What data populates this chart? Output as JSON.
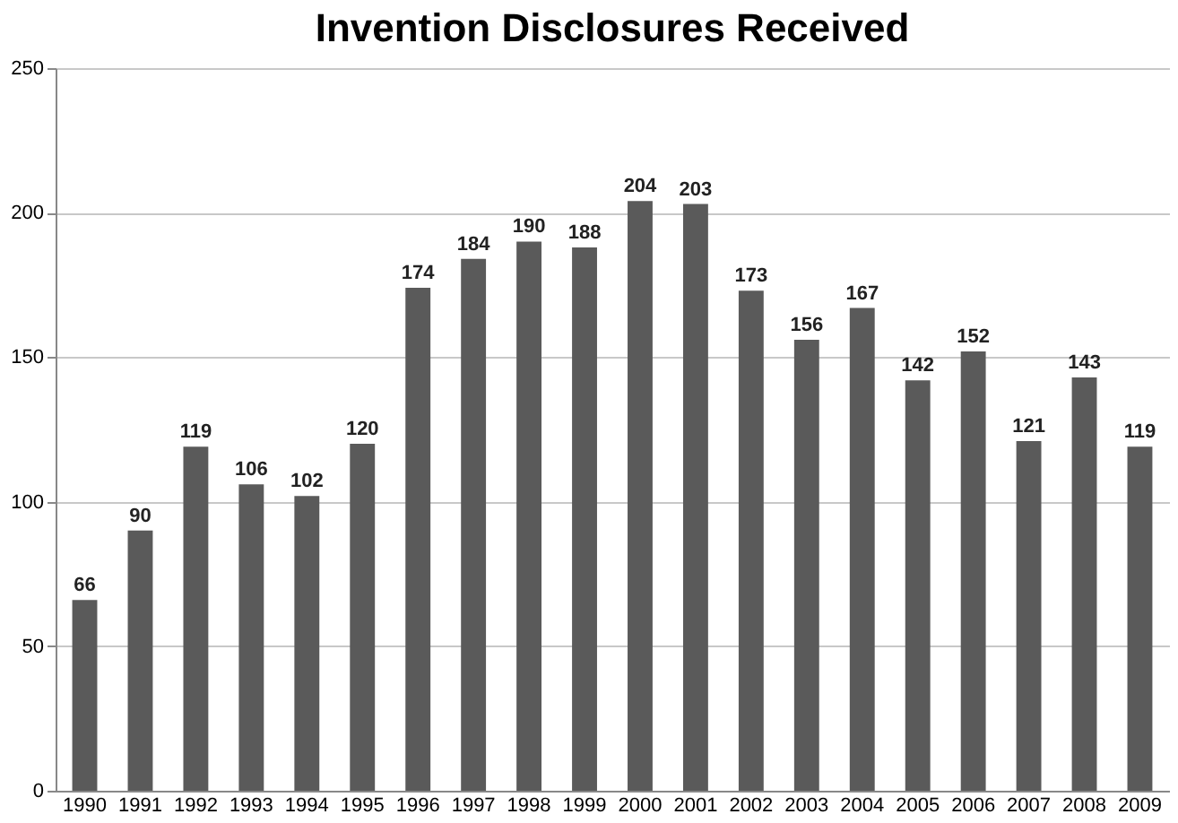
{
  "chart_data": {
    "type": "bar",
    "title": "Invention Disclosures Received",
    "categories": [
      "1990",
      "1991",
      "1992",
      "1993",
      "1994",
      "1995",
      "1996",
      "1997",
      "1998",
      "1999",
      "2000",
      "2001",
      "2002",
      "2003",
      "2004",
      "2005",
      "2006",
      "2007",
      "2008",
      "2009"
    ],
    "values": [
      66,
      90,
      119,
      106,
      102,
      120,
      174,
      184,
      190,
      188,
      204,
      203,
      173,
      156,
      167,
      142,
      152,
      121,
      143,
      119
    ],
    "color": "#5a5a5a",
    "ylim": [
      0,
      250
    ],
    "yticks": [
      0,
      50,
      100,
      150,
      200,
      250
    ],
    "grid": "y",
    "data_labels": true
  }
}
